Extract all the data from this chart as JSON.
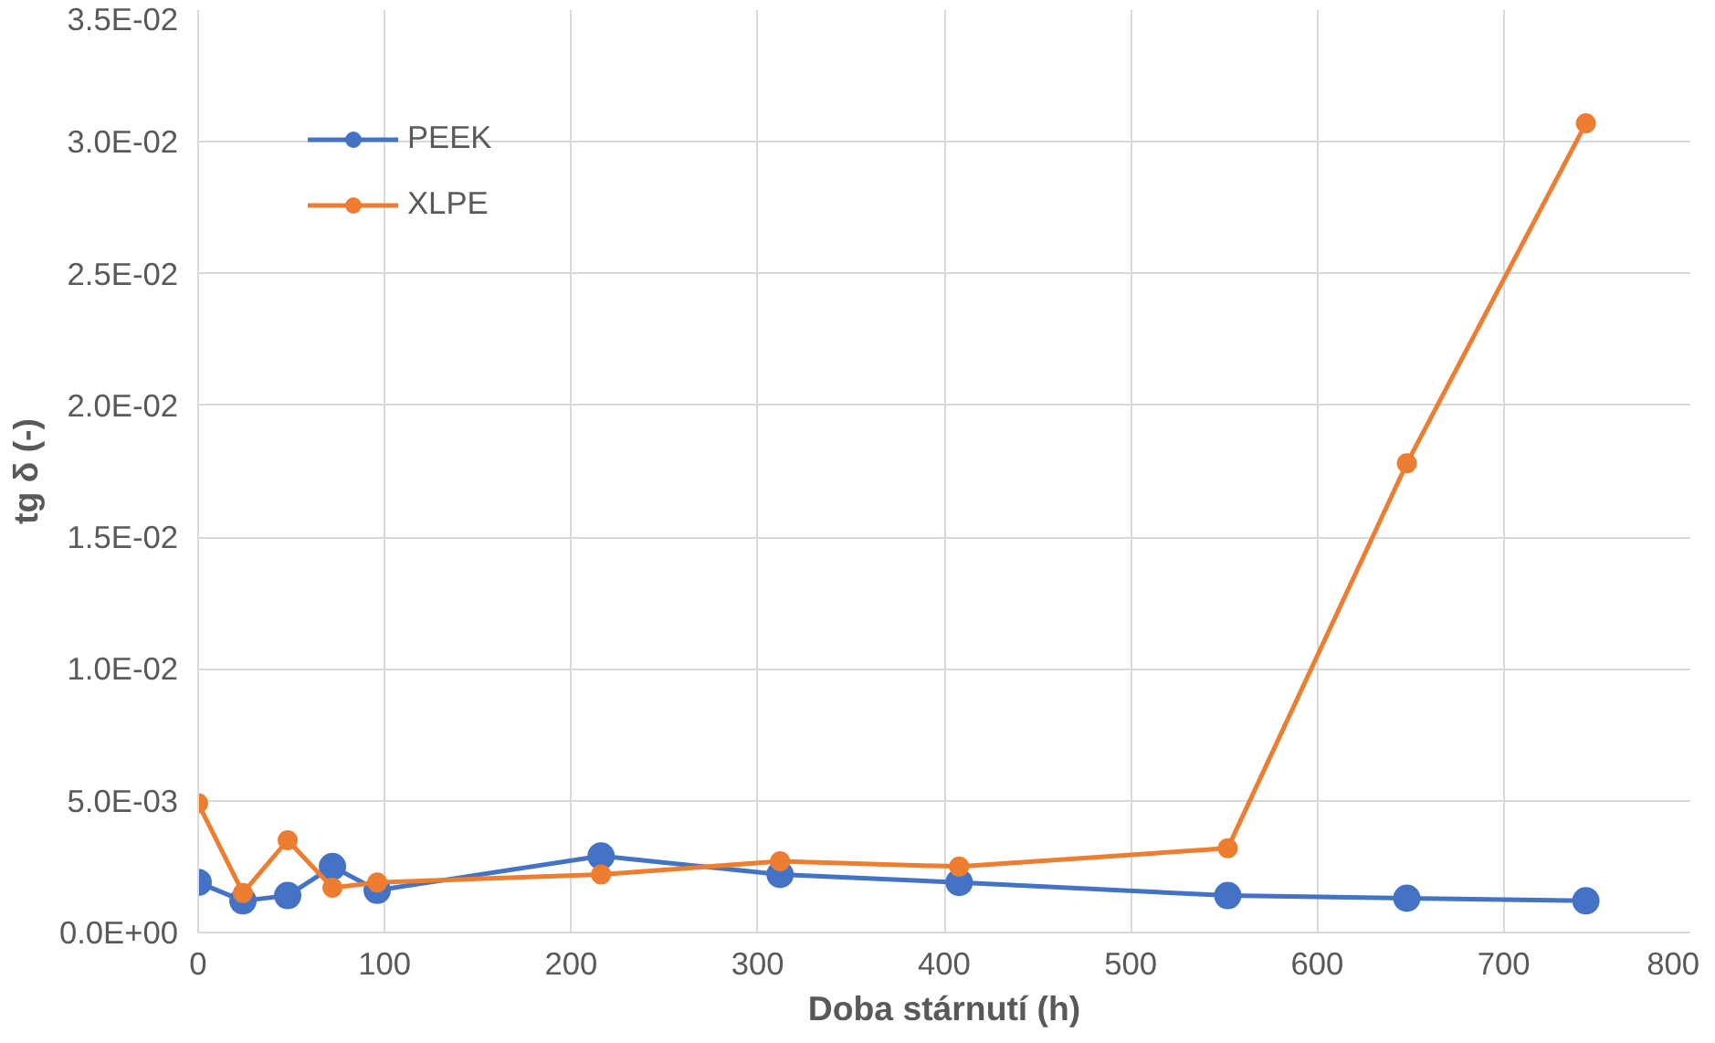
{
  "chart_data": {
    "type": "line",
    "xlabel": "Doba stárnutí (h)",
    "ylabel": "tg δ (-)",
    "x": [
      0,
      24,
      48,
      72,
      96,
      216,
      312,
      408,
      552,
      648,
      744
    ],
    "series": [
      {
        "name": "PEEK",
        "color": "#4472c4",
        "values": [
          0.0019,
          0.0012,
          0.0014,
          0.0025,
          0.0016,
          0.0029,
          0.0022,
          0.0019,
          0.0014,
          0.0013,
          0.0012
        ]
      },
      {
        "name": "XLPE",
        "color": "#ed7d31",
        "values": [
          0.0049,
          0.0015,
          0.0035,
          0.0017,
          0.0019,
          0.0022,
          0.0027,
          0.0025,
          0.0032,
          0.0178,
          0.0307
        ]
      }
    ],
    "xlim": [
      0,
      800
    ],
    "xticks": [
      0,
      100,
      200,
      300,
      400,
      500,
      600,
      700,
      800
    ],
    "ylim": [
      0,
      0.035
    ],
    "yticks": [
      {
        "value": 0,
        "label": "0.0E+00"
      },
      {
        "value": 0.005,
        "label": "5.0E-03"
      },
      {
        "value": 0.01,
        "label": "1.0E-02"
      },
      {
        "value": 0.015,
        "label": "1.5E-02"
      },
      {
        "value": 0.02,
        "label": "2.0E-02"
      },
      {
        "value": 0.025,
        "label": "2.5E-02"
      },
      {
        "value": 0.03,
        "label": "3.0E-02"
      },
      {
        "value": 0.035,
        "label": "3.5E-02"
      }
    ],
    "grid": true,
    "legend": "top left",
    "marker": "circle",
    "line_style": "solid"
  }
}
